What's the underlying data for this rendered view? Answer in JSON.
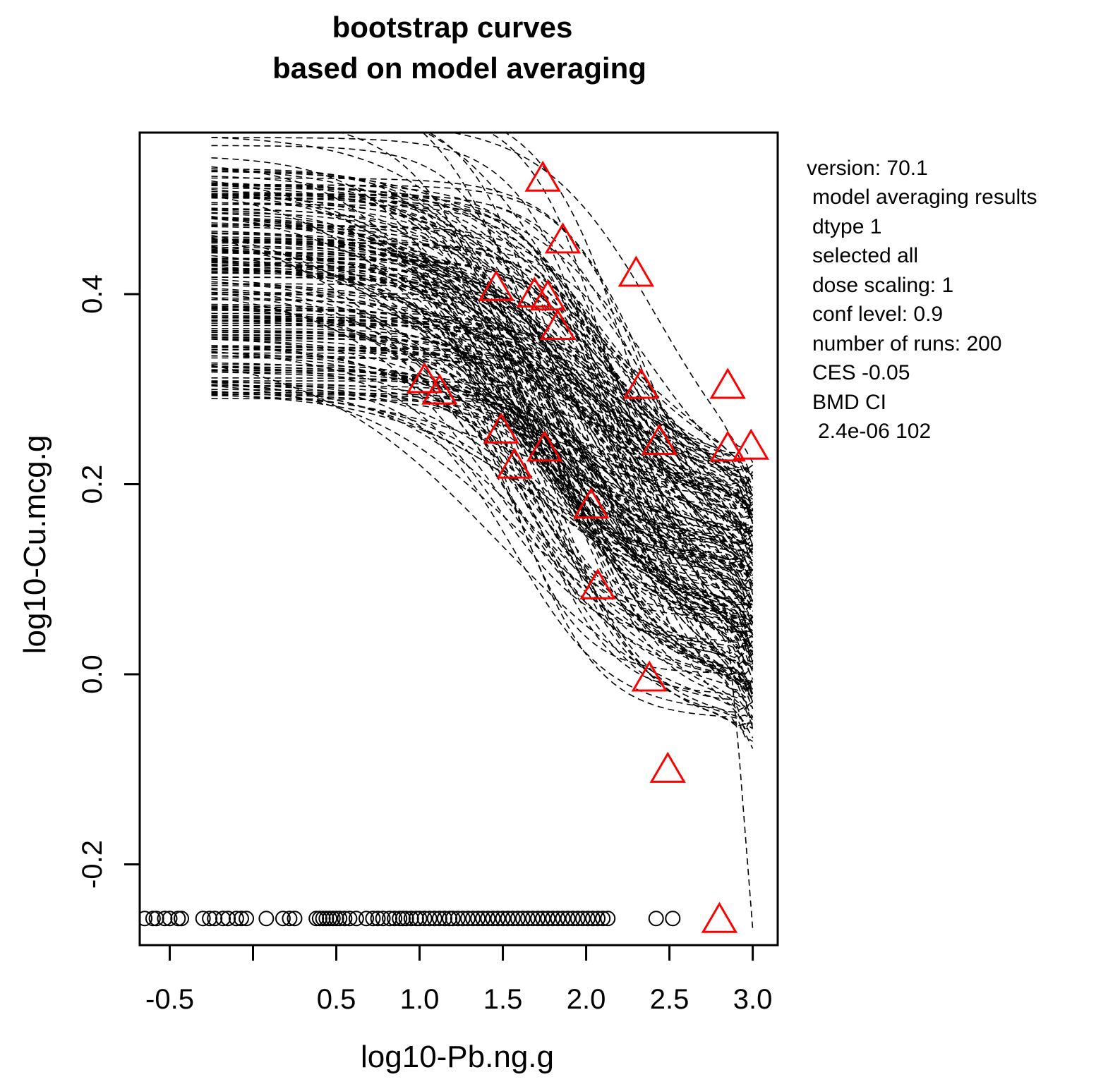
{
  "chart_data": {
    "type": "line",
    "title": [
      "bootstrap curves",
      "based on model averaging"
    ],
    "xlabel": "log10-Pb.ng.g",
    "ylabel": "log10-Cu.mcg.g",
    "xlim": [
      -0.68,
      3.15
    ],
    "ylim": [
      -0.285,
      0.57
    ],
    "x_ticks": [
      -0.5,
      0.0,
      0.5,
      1.0,
      1.5,
      2.0,
      2.5,
      3.0
    ],
    "x_tick_labels": [
      "-0.5",
      "",
      "0.5",
      "1.0",
      "1.5",
      "2.0",
      "2.5",
      "3.0"
    ],
    "y_ticks": [
      -0.2,
      0.0,
      0.2,
      0.4
    ],
    "y_tick_labels": [
      "-0.2",
      "0.0",
      "0.2",
      "0.4"
    ],
    "n_bootstrap_curves": 200,
    "curve_x_range": [
      -0.25,
      3.0
    ],
    "bootstrap_curve_style": "dashed",
    "observed_points": {
      "marker": "triangle",
      "color": "#ff0000",
      "x": [
        1.74,
        1.86,
        2.3,
        1.46,
        1.69,
        1.77,
        1.83,
        1.03,
        1.12,
        2.33,
        2.85,
        1.49,
        1.57,
        1.75,
        2.03,
        2.07,
        2.38,
        2.49,
        2.44,
        2.85,
        2.99,
        2.8
      ],
      "y": [
        0.522,
        0.457,
        0.422,
        0.407,
        0.4,
        0.397,
        0.366,
        0.31,
        0.298,
        0.304,
        0.304,
        0.257,
        0.22,
        0.238,
        0.178,
        0.093,
        -0.004,
        -0.1,
        0.245,
        0.238,
        0.24,
        -0.258
      ]
    },
    "dose_markers": {
      "marker": "circle",
      "color": "#000000",
      "y_level": -0.257,
      "x": [
        -0.65,
        -0.6,
        -0.58,
        -0.53,
        -0.5,
        -0.45,
        -0.43,
        -0.3,
        -0.26,
        -0.23,
        -0.18,
        -0.15,
        -0.1,
        -0.07,
        -0.04,
        0.08,
        0.18,
        0.22,
        0.25,
        0.38,
        0.4,
        0.42,
        0.44,
        0.46,
        0.48,
        0.5,
        0.52,
        0.55,
        0.58,
        0.62,
        0.68,
        0.72,
        0.75,
        0.78,
        0.82,
        0.85,
        0.88,
        0.9,
        0.92,
        0.95,
        0.98,
        1.0,
        1.03,
        1.06,
        1.09,
        1.12,
        1.15,
        1.18,
        1.2,
        1.23,
        1.26,
        1.29,
        1.32,
        1.35,
        1.38,
        1.41,
        1.44,
        1.47,
        1.5,
        1.53,
        1.56,
        1.59,
        1.62,
        1.65,
        1.68,
        1.71,
        1.74,
        1.77,
        1.8,
        1.83,
        1.86,
        1.89,
        1.92,
        1.95,
        1.98,
        2.01,
        2.04,
        2.07,
        2.1,
        2.13,
        2.42,
        2.52
      ]
    }
  },
  "info_panel": {
    "version": "version: 70.1",
    "results": "model averaging results",
    "dtype": "dtype   1",
    "selected": "selected   all",
    "dose_scaling": "dose scaling: 1",
    "conf_level": "conf level: 0.9",
    "runs": "number of runs: 200",
    "ces": "CES   -0.05",
    "bmd_label": "BMD CI",
    "bmd_values": "2.4e-06  102"
  }
}
